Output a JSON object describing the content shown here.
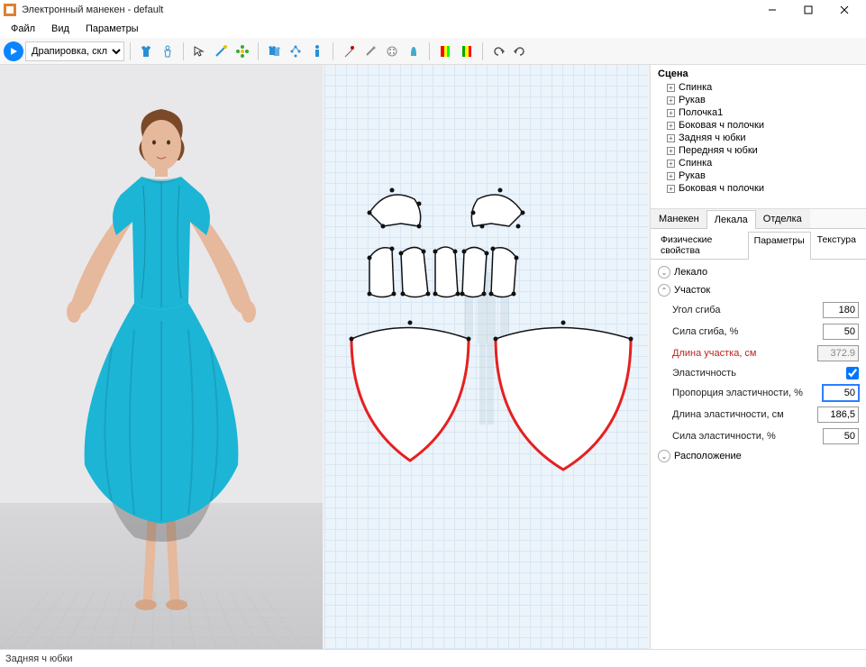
{
  "window": {
    "title": "Электронный манекен - default"
  },
  "menu": {
    "file": "Файл",
    "view": "Вид",
    "params": "Параметры"
  },
  "toolbar": {
    "mode_select": "Драпировка, склады"
  },
  "statusbar": {
    "text": "Задняя ч юбки"
  },
  "scene": {
    "title": "Сцена",
    "items": [
      "Спинка",
      "Рукав",
      "Полочка1",
      "Боковая ч полочки",
      "Задняя ч юбки",
      "Передняя ч юбки",
      "Спинка",
      "Рукав",
      "Боковая ч полочки"
    ]
  },
  "panel_tabs": {
    "t1": "Манекен",
    "t2": "Лекала",
    "t3": "Отделка",
    "active": 1
  },
  "sub_tabs": {
    "s1": "Физические свойства",
    "s2": "Параметры",
    "s3": "Текстура",
    "active": 1
  },
  "sections": {
    "lekalo": "Лекало",
    "uchastok": "Участок",
    "raspolozhenie": "Расположение"
  },
  "props": {
    "bend_angle": {
      "label": "Угол сгиба",
      "value": "180"
    },
    "bend_force": {
      "label": "Сила сгиба, %",
      "value": "50"
    },
    "segment_len": {
      "label": "Длина участка, см",
      "value": "372.9",
      "readonly": true,
      "red": true
    },
    "elasticity": {
      "label": "Эластичность",
      "checked": true
    },
    "elastic_ratio": {
      "label": "Пропорция эластичности, %",
      "value": "50",
      "focused": true
    },
    "elastic_len": {
      "label": "Длина эластичности, см",
      "value": "186,5"
    },
    "elastic_force": {
      "label": "Сила эластичности, %",
      "value": "50"
    }
  },
  "colors": {
    "dress": "#1cb5d6",
    "dress_shadow": "#158fa9",
    "skin": "#e6b89c",
    "hair": "#7a4a28",
    "accent_line": "#e62020",
    "grid_bg": "#ebf3fb",
    "pattern_fill": "#ffffff",
    "pattern_stroke": "#111"
  }
}
